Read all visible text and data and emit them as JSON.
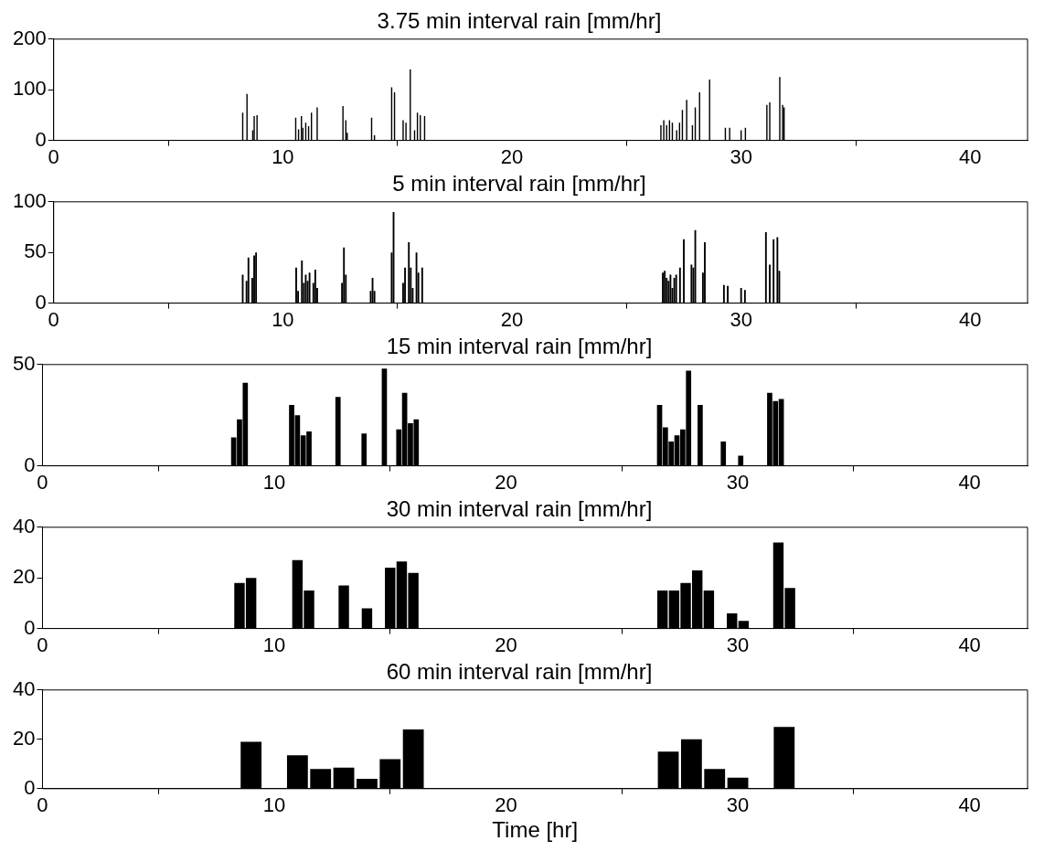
{
  "chart_data": [
    {
      "type": "bar",
      "title": "3.75 min interval rain [mm/hr]",
      "color": "#000000",
      "grid": false,
      "xlim": [
        0,
        42.5
      ],
      "xticks": [
        0,
        10,
        20,
        30,
        40
      ],
      "ylim": [
        0,
        200
      ],
      "yticks": [
        0,
        100,
        200
      ],
      "x": [
        8.25,
        8.4375,
        8.6875,
        8.75,
        8.875,
        10.5625,
        10.6875,
        10.8125,
        10.875,
        11.0,
        11.125,
        11.25,
        11.5,
        12.625,
        12.75,
        12.8125,
        13.875,
        14.0,
        14.75,
        14.875,
        15.25,
        15.375,
        15.5625,
        15.75,
        15.875,
        16.0,
        16.1875,
        26.5,
        26.625,
        26.75,
        26.875,
        27.0,
        27.1875,
        27.3125,
        27.4375,
        27.625,
        27.875,
        28.0,
        28.1875,
        28.625,
        29.3125,
        29.5,
        30.0,
        30.1875,
        31.125,
        31.25,
        31.6875,
        31.8125,
        31.875
      ],
      "values": [
        55,
        92,
        20,
        48,
        50,
        45,
        22,
        48,
        25,
        35,
        28,
        55,
        65,
        68,
        40,
        15,
        45,
        10,
        105,
        95,
        40,
        35,
        140,
        20,
        55,
        50,
        48,
        30,
        40,
        30,
        40,
        35,
        20,
        35,
        60,
        80,
        30,
        65,
        95,
        120,
        25,
        25,
        20,
        25,
        70,
        75,
        125,
        70,
        65
      ]
    },
    {
      "type": "bar",
      "title": "5 min interval rain [mm/hr]",
      "color": "#000000",
      "grid": false,
      "xlim": [
        0,
        42.5
      ],
      "xticks": [
        0,
        10,
        20,
        30,
        40
      ],
      "ylim": [
        0,
        100
      ],
      "yticks": [
        0,
        50,
        100
      ],
      "x": [
        8.25,
        8.4167,
        8.5,
        8.6667,
        8.75,
        8.8333,
        10.5833,
        10.6667,
        10.8333,
        10.9167,
        11.0,
        11.0833,
        11.1667,
        11.3333,
        11.4167,
        11.5,
        12.5833,
        12.6667,
        12.75,
        13.8333,
        13.9167,
        14.0,
        14.75,
        14.8333,
        15.25,
        15.3333,
        15.5,
        15.5833,
        15.6667,
        15.8333,
        15.9167,
        16.0833,
        26.5833,
        26.6667,
        26.75,
        26.8333,
        26.9167,
        27.0,
        27.0833,
        27.1667,
        27.3333,
        27.5,
        27.8333,
        27.9167,
        28.0,
        28.3333,
        28.4167,
        29.25,
        29.4167,
        30.0,
        30.1667,
        31.0833,
        31.25,
        31.4167,
        31.5833,
        31.6667
      ],
      "values": [
        28,
        22,
        45,
        25,
        47,
        50,
        35,
        12,
        42,
        20,
        28,
        22,
        30,
        20,
        33,
        15,
        20,
        55,
        28,
        12,
        25,
        12,
        50,
        90,
        20,
        35,
        60,
        35,
        15,
        50,
        30,
        35,
        30,
        32,
        25,
        22,
        28,
        15,
        25,
        28,
        35,
        63,
        38,
        35,
        72,
        30,
        60,
        18,
        17,
        15,
        13,
        70,
        38,
        63,
        65,
        32
      ]
    },
    {
      "type": "bar",
      "title": "15 min interval rain [mm/hr]",
      "color": "#000000",
      "grid": false,
      "xlim": [
        0,
        42.5
      ],
      "xticks": [
        0,
        10,
        20,
        30,
        40
      ],
      "ylim": [
        0,
        50
      ],
      "yticks": [
        0,
        50
      ],
      "x": [
        8.25,
        8.5,
        8.75,
        10.75,
        11.0,
        11.25,
        11.5,
        12.75,
        13.875,
        14.75,
        15.375,
        15.625,
        15.875,
        16.125,
        26.625,
        26.875,
        27.125,
        27.375,
        27.625,
        27.875,
        28.375,
        29.375,
        30.125,
        31.375,
        31.625,
        31.875
      ],
      "values": [
        14,
        23,
        41,
        30,
        25,
        15,
        17,
        34,
        16,
        48,
        18,
        36,
        21,
        23,
        30,
        19,
        12,
        15,
        18,
        47,
        30,
        12,
        5,
        36,
        32,
        33
      ]
    },
    {
      "type": "bar",
      "title": "30 min interval rain [mm/hr]",
      "color": "#000000",
      "grid": false,
      "xlim": [
        0,
        42.5
      ],
      "xticks": [
        0,
        10,
        20,
        30,
        40
      ],
      "ylim": [
        0,
        40
      ],
      "yticks": [
        0,
        20,
        40
      ],
      "x": [
        8.5,
        9.0,
        11.0,
        11.5,
        13.0,
        14.0,
        15.0,
        15.5,
        16.0,
        26.75,
        27.25,
        27.75,
        28.25,
        28.75,
        29.75,
        30.25,
        31.75,
        32.25
      ],
      "values": [
        18,
        20,
        27,
        15,
        17,
        8,
        24,
        26.5,
        22,
        15,
        15,
        18,
        23,
        15,
        6,
        3,
        34,
        16
      ]
    },
    {
      "type": "bar",
      "title": "60 min interval rain [mm/hr]",
      "xlabel": "Time [hr]",
      "color": "#000000",
      "grid": false,
      "xlim": [
        0,
        42.5
      ],
      "xticks": [
        0,
        10,
        20,
        30,
        40
      ],
      "ylim": [
        0,
        40
      ],
      "yticks": [
        0,
        20,
        40
      ],
      "x": [
        9.0,
        11.0,
        12.0,
        13.0,
        14.0,
        15.0,
        16.0,
        27.0,
        28.0,
        29.0,
        30.0,
        32.0
      ],
      "values": [
        19,
        13.5,
        8,
        8.5,
        4,
        12,
        24,
        15,
        20,
        8,
        4.5,
        25
      ]
    }
  ]
}
